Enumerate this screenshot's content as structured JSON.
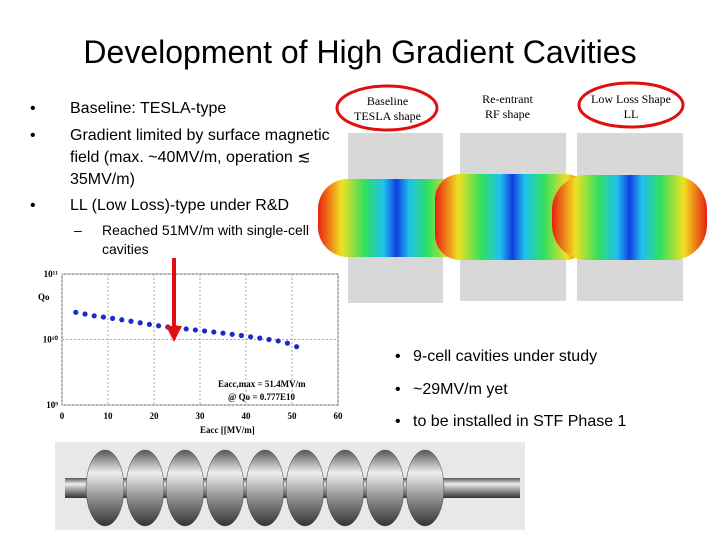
{
  "title": "Development of High Gradient Cavities",
  "bullets": [
    "Baseline: TESLA-type",
    "Gradient limited by surface magnetic field (max. ~40MV/m, operation ≲ 35MV/m)",
    "LL (Low Loss)-type under R&D"
  ],
  "sub_bullet": "Reached 51MV/m with single-cell cavities",
  "shapes": [
    [
      "Baseline",
      "TESLA shape"
    ],
    [
      "Re-entrant",
      "RF shape"
    ],
    [
      "Low Loss Shape",
      "LL"
    ]
  ],
  "right_bullets": [
    "9-cell cavities under study",
    "~29MV/m yet",
    "to be installed in STF Phase 1"
  ],
  "plot": {
    "type": "scatter",
    "x_label": "Eacc [[MV/m]",
    "y_label": "Qo",
    "annotations": [
      "Eacc,max = 51.4MV/m",
      "@ Qo = 0.777E10"
    ],
    "xlim": [
      0,
      60
    ],
    "xticks": [
      0,
      10,
      20,
      30,
      40,
      50,
      60
    ],
    "ylim": [
      1000000000,
      100000000000
    ],
    "log_y": true,
    "grid": true,
    "color": "#1a2cc8",
    "yticks": [
      {
        "value": 1000000000,
        "label": "10⁹"
      },
      {
        "value": 10000000000,
        "label": "10¹⁰"
      },
      {
        "value": 100000000000,
        "label": "10¹¹"
      }
    ],
    "x": [
      3,
      5,
      7,
      9,
      11,
      13,
      15,
      17,
      19,
      21,
      23,
      25,
      27,
      29,
      31,
      33,
      35,
      37,
      39,
      41,
      43,
      45,
      47,
      49,
      51
    ],
    "y": [
      26000000000,
      24500000000,
      23000000000,
      22000000000,
      21000000000,
      20000000000,
      19000000000,
      18000000000,
      17000000000,
      16200000000,
      15500000000,
      15000000000,
      14500000000,
      14000000000,
      13500000000,
      13000000000,
      12500000000,
      12000000000,
      11500000000,
      11000000000,
      10500000000,
      10000000000,
      9500000000,
      8800000000,
      7770000000
    ]
  }
}
